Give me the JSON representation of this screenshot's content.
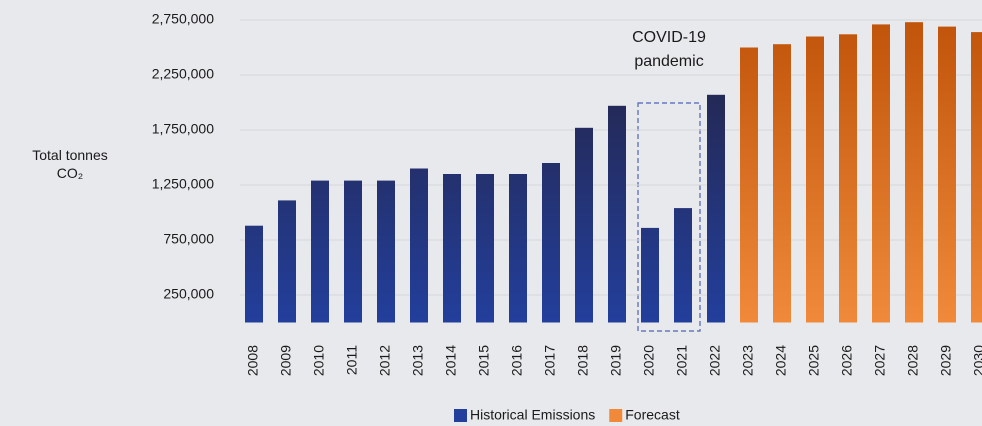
{
  "chart_data": {
    "type": "bar",
    "y_label": "Total tonnes CO₂",
    "annotation": "COVID-19 pandemic",
    "categories": [
      "2008",
      "2009",
      "2010",
      "2011",
      "2012",
      "2013",
      "2014",
      "2015",
      "2016",
      "2017",
      "2018",
      "2019",
      "2020",
      "2021",
      "2022",
      "2023",
      "2024",
      "2025",
      "2026",
      "2027",
      "2028",
      "2029",
      "2030"
    ],
    "series": [
      {
        "name": "Historical Emissions",
        "color": "#233f9c",
        "color_top": "#24223f",
        "values": [
          880000,
          1110000,
          1290000,
          1290000,
          1290000,
          1400000,
          1350000,
          1350000,
          1350000,
          1450000,
          1770000,
          1970000,
          860000,
          1040000,
          2070000,
          null,
          null,
          null,
          null,
          null,
          null,
          null,
          null
        ]
      },
      {
        "name": "Forecast",
        "color": "#f08a3a",
        "color_top": "#c0540a",
        "values": [
          null,
          null,
          null,
          null,
          null,
          null,
          null,
          null,
          null,
          null,
          null,
          null,
          null,
          null,
          null,
          2500000,
          2530000,
          2600000,
          2620000,
          2710000,
          2730000,
          2690000,
          2640000
        ]
      }
    ],
    "ylim": [
      0,
      2750000
    ],
    "yticks": [
      {
        "value": 250000,
        "label": "250,000"
      },
      {
        "value": 750000,
        "label": "750,000"
      },
      {
        "value": 1250000,
        "label": "1,250,000"
      },
      {
        "value": 1750000,
        "label": "1,750,000"
      },
      {
        "value": 2250000,
        "label": "2,250,000"
      },
      {
        "value": 2750000,
        "label": "2,750,000"
      }
    ],
    "grid": true,
    "legend": "bottom"
  }
}
